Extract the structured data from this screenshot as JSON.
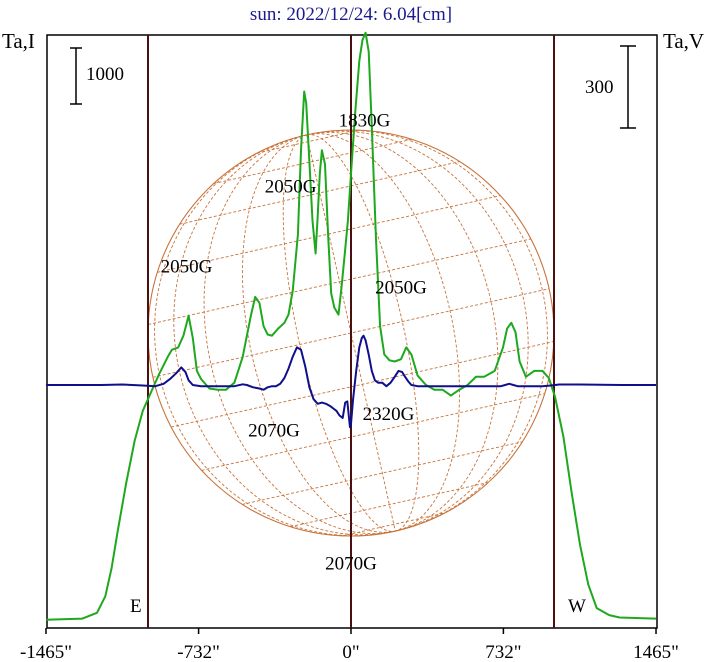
{
  "chart_data": {
    "type": "line",
    "title": "sun: 2022/12/24: 6.04[cm]",
    "y_left_label": "Ta,I",
    "y_right_label": "Ta,V",
    "scale_bar_left": "1000",
    "scale_bar_right": "300",
    "limb_east_label": "E",
    "limb_west_label": "W",
    "xlim": [
      -1465,
      1465
    ],
    "x_ticks": [
      -1465,
      -732,
      0,
      732,
      1465
    ],
    "x_tick_labels": [
      "-1465\"",
      "-732\"",
      "0\"",
      "732\"",
      "1465\""
    ],
    "vertical_lines": [
      -975,
      0,
      975
    ],
    "series": [
      {
        "name": "Ta,I",
        "color": "#1ea81e",
        "points": [
          [
            -1465,
            -1000
          ],
          [
            -1290,
            -995
          ],
          [
            -1220,
            -970
          ],
          [
            -1180,
            -900
          ],
          [
            -1150,
            -780
          ],
          [
            -1120,
            -620
          ],
          [
            -1080,
            -420
          ],
          [
            -1040,
            -240
          ],
          [
            -1000,
            -110
          ],
          [
            -960,
            -30
          ],
          [
            -920,
            50
          ],
          [
            -880,
            120
          ],
          [
            -860,
            150
          ],
          [
            -830,
            160
          ],
          [
            -805,
            210
          ],
          [
            -780,
            295
          ],
          [
            -760,
            200
          ],
          [
            -740,
            60
          ],
          [
            -720,
            25
          ],
          [
            -680,
            -15
          ],
          [
            -640,
            -20
          ],
          [
            -600,
            -20
          ],
          [
            -560,
            10
          ],
          [
            -520,
            120
          ],
          [
            -480,
            300
          ],
          [
            -460,
            375
          ],
          [
            -440,
            350
          ],
          [
            -420,
            250
          ],
          [
            -400,
            215
          ],
          [
            -380,
            210
          ],
          [
            -350,
            240
          ],
          [
            -320,
            265
          ],
          [
            -300,
            300
          ],
          [
            -280,
            400
          ],
          [
            -255,
            640
          ],
          [
            -240,
            1000
          ],
          [
            -225,
            1250
          ],
          [
            -215,
            1200
          ],
          [
            -200,
            950
          ],
          [
            -185,
            700
          ],
          [
            -170,
            560
          ],
          [
            -160,
            720
          ],
          [
            -150,
            900
          ],
          [
            -140,
            1000
          ],
          [
            -125,
            940
          ],
          [
            -110,
            640
          ],
          [
            -95,
            390
          ],
          [
            -80,
            330
          ],
          [
            -60,
            300
          ],
          [
            -45,
            420
          ],
          [
            -30,
            560
          ],
          [
            -15,
            700
          ],
          [
            0,
            900
          ],
          [
            20,
            1160
          ],
          [
            40,
            1380
          ],
          [
            55,
            1470
          ],
          [
            70,
            1500
          ],
          [
            85,
            1420
          ],
          [
            100,
            1100
          ],
          [
            120,
            620
          ],
          [
            140,
            250
          ],
          [
            160,
            130
          ],
          [
            185,
            105
          ],
          [
            210,
            100
          ],
          [
            240,
            110
          ],
          [
            265,
            160
          ],
          [
            290,
            130
          ],
          [
            320,
            40
          ],
          [
            360,
            0
          ],
          [
            400,
            -20
          ],
          [
            440,
            -20
          ],
          [
            480,
            -45
          ],
          [
            520,
            -20
          ],
          [
            560,
            0
          ],
          [
            600,
            35
          ],
          [
            640,
            35
          ],
          [
            690,
            60
          ],
          [
            730,
            160
          ],
          [
            750,
            240
          ],
          [
            770,
            265
          ],
          [
            790,
            225
          ],
          [
            810,
            100
          ],
          [
            840,
            35
          ],
          [
            880,
            60
          ],
          [
            920,
            60
          ],
          [
            950,
            30
          ],
          [
            980,
            -50
          ],
          [
            1020,
            -220
          ],
          [
            1060,
            -460
          ],
          [
            1100,
            -680
          ],
          [
            1140,
            -850
          ],
          [
            1180,
            -950
          ],
          [
            1240,
            -980
          ],
          [
            1290,
            -990
          ],
          [
            1465,
            -995
          ]
        ]
      },
      {
        "name": "Ta,V",
        "color": "#0f0f8c",
        "points": [
          [
            -1465,
            0
          ],
          [
            -1200,
            0
          ],
          [
            -1100,
            2
          ],
          [
            -1000,
            -2
          ],
          [
            -940,
            -5
          ],
          [
            -900,
            5
          ],
          [
            -870,
            25
          ],
          [
            -840,
            50
          ],
          [
            -815,
            75
          ],
          [
            -795,
            55
          ],
          [
            -780,
            20
          ],
          [
            -760,
            0
          ],
          [
            -720,
            -5
          ],
          [
            -680,
            -5
          ],
          [
            -620,
            -5
          ],
          [
            -560,
            -5
          ],
          [
            -520,
            3
          ],
          [
            -500,
            0
          ],
          [
            -470,
            -10
          ],
          [
            -440,
            -15
          ],
          [
            -420,
            -20
          ],
          [
            -400,
            -10
          ],
          [
            -380,
            -5
          ],
          [
            -360,
            -5
          ],
          [
            -340,
            5
          ],
          [
            -320,
            30
          ],
          [
            -300,
            70
          ],
          [
            -280,
            120
          ],
          [
            -260,
            160
          ],
          [
            -240,
            150
          ],
          [
            -220,
            80
          ],
          [
            -200,
            -10
          ],
          [
            -180,
            -60
          ],
          [
            -160,
            -80
          ],
          [
            -140,
            -75
          ],
          [
            -120,
            -80
          ],
          [
            -100,
            -90
          ],
          [
            -85,
            -100
          ],
          [
            -70,
            -110
          ],
          [
            -55,
            -130
          ],
          [
            -40,
            -140
          ],
          [
            -28,
            -75
          ],
          [
            -18,
            -70
          ],
          [
            -5,
            -180
          ],
          [
            0,
            -165
          ],
          [
            10,
            -60
          ],
          [
            25,
            60
          ],
          [
            40,
            160
          ],
          [
            52,
            200
          ],
          [
            60,
            210
          ],
          [
            70,
            190
          ],
          [
            85,
            130
          ],
          [
            100,
            60
          ],
          [
            115,
            20
          ],
          [
            130,
            10
          ],
          [
            150,
            10
          ],
          [
            170,
            -5
          ],
          [
            190,
            10
          ],
          [
            210,
            35
          ],
          [
            228,
            60
          ],
          [
            245,
            56
          ],
          [
            260,
            35
          ],
          [
            275,
            15
          ],
          [
            290,
            0
          ],
          [
            320,
            -5
          ],
          [
            360,
            -5
          ],
          [
            400,
            -5
          ],
          [
            450,
            -5
          ],
          [
            500,
            -5
          ],
          [
            560,
            -5
          ],
          [
            620,
            -5
          ],
          [
            680,
            -5
          ],
          [
            720,
            -5
          ],
          [
            740,
            0
          ],
          [
            760,
            5
          ],
          [
            780,
            0
          ],
          [
            800,
            -5
          ],
          [
            840,
            -5
          ],
          [
            880,
            -5
          ],
          [
            920,
            -5
          ],
          [
            960,
            -2
          ],
          [
            1000,
            2
          ],
          [
            1100,
            2
          ],
          [
            1200,
            1
          ],
          [
            1300,
            0
          ],
          [
            1465,
            0
          ]
        ]
      }
    ],
    "annotations": [
      {
        "text": "1830G",
        "x": 65,
        "y": 1100
      },
      {
        "text": "2050G",
        "x": -290,
        "y": 820
      },
      {
        "text": "2050G",
        "x": -790,
        "y": 480
      },
      {
        "text": "2050G",
        "x": 240,
        "y": 390
      },
      {
        "text": "2070G",
        "x": -370,
        "y": -220
      },
      {
        "text": "2320G",
        "x": 180,
        "y": -150
      },
      {
        "text": "2070G",
        "x": 0,
        "y": -785
      }
    ],
    "solar_disc": {
      "radius": 975,
      "color": "#c8733a"
    }
  }
}
